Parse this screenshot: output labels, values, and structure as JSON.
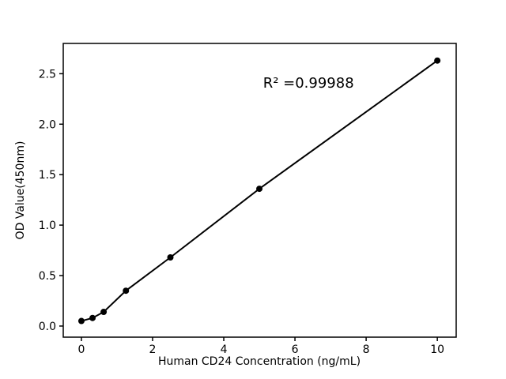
{
  "figure": {
    "background": "#ffffff",
    "foreground": "#000000"
  },
  "chart_data": {
    "type": "line",
    "x": [
      0,
      0.3125,
      0.625,
      1.25,
      2.5,
      5,
      10
    ],
    "y": [
      0.05,
      0.08,
      0.14,
      0.35,
      0.68,
      1.36,
      2.63
    ],
    "title": "",
    "xlabel": "Human CD24 Concentration (ng/mL)",
    "ylabel": "OD Value(450nm)",
    "xlim": [
      -0.51,
      10.53
    ],
    "ylim": [
      -0.11,
      2.8
    ],
    "xticks": {
      "values": [
        0,
        2,
        4,
        6,
        8,
        10
      ],
      "labels": [
        "0",
        "2",
        "4",
        "6",
        "8",
        "10"
      ]
    },
    "yticks": {
      "values": [
        0,
        0.5,
        1.0,
        1.5,
        2.0,
        2.5
      ],
      "labels": [
        "0.0",
        "0.5",
        "1.0",
        "1.5",
        "2.0",
        "2.5"
      ]
    },
    "grid": false,
    "legend": "none",
    "marker": {
      "shape": "circle",
      "radius": 4,
      "color": "#000000"
    },
    "line": {
      "width": 2,
      "color": "#000000"
    },
    "annotation": {
      "text": "R² =0.99988",
      "x": 6.38,
      "y": 2.41
    }
  }
}
